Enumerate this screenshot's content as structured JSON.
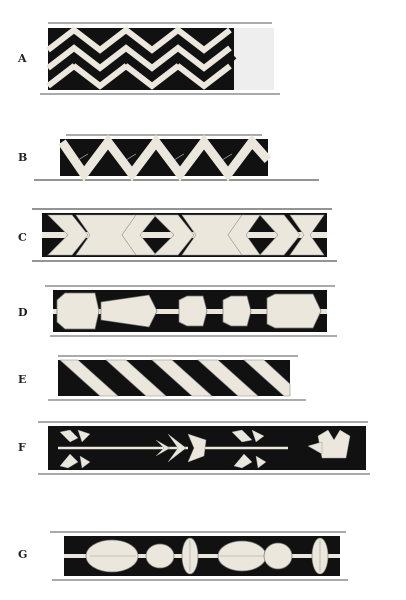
{
  "plate": {
    "caption": "",
    "bands": [
      {
        "label": "A",
        "pattern": "interlocking-chevron"
      },
      {
        "label": "B",
        "pattern": "zigzag"
      },
      {
        "label": "C",
        "pattern": "double-arrow-links"
      },
      {
        "label": "D",
        "pattern": "beaded-cylinders"
      },
      {
        "label": "E",
        "pattern": "diagonal-stripes"
      },
      {
        "label": "F",
        "pattern": "arrow-and-flower"
      },
      {
        "label": "G",
        "pattern": "lens-and-bud"
      }
    ]
  },
  "colors": {
    "ink": "#111111",
    "quill": "#e9e6dd",
    "paper": "#ffffff",
    "outline": "#555555"
  }
}
